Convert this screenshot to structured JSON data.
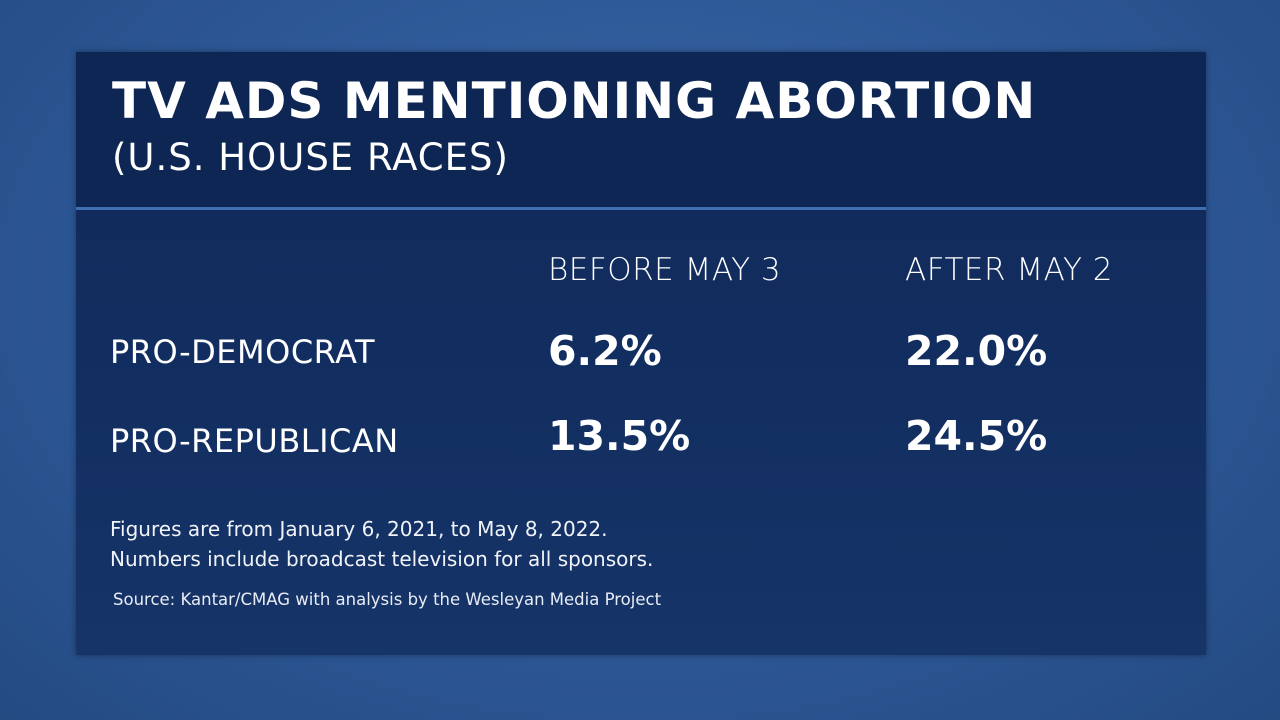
{
  "header": {
    "title": "TV ADS MENTIONING ABORTION",
    "subtitle": "(U.S. HOUSE RACES)"
  },
  "chart_data": {
    "type": "table",
    "columns": [
      "BEFORE MAY 3",
      "AFTER MAY 2"
    ],
    "rows": [
      {
        "label": "PRO-DEMOCRAT",
        "values": [
          "6.2%",
          "22.0%"
        ]
      },
      {
        "label": "PRO-REPUBLICAN",
        "values": [
          "13.5%",
          "24.5%"
        ]
      }
    ]
  },
  "notes": [
    "Figures are from January 6, 2021, to May 8, 2022.",
    "Numbers include broadcast television for all sponsors."
  ],
  "source": "Source: Kantar/CMAG with analysis by the Wesleyan Media Project",
  "colors": {
    "background": "#2d5896",
    "panel": "#0f2857",
    "text": "#ffffff"
  }
}
